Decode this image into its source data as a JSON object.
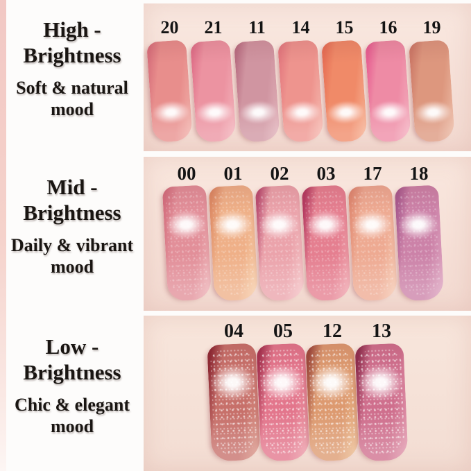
{
  "page": {
    "background": "#fdfcfb",
    "left_strip_color": "#f2c8c4",
    "text_color": "#191512",
    "number_color": "#141414"
  },
  "sections": [
    {
      "id": "high-brightness",
      "title": [
        "High -",
        "Brightness"
      ],
      "subtitle": [
        "Soft & natural",
        "mood"
      ],
      "panel": {
        "bg_top": "#f9e8e0",
        "bg_bottom": "#f3dad1"
      },
      "swatches": [
        {
          "number": "20",
          "color": "#e88e8c",
          "edge": "#d8707c",
          "light": "#f2b3ac"
        },
        {
          "number": "21",
          "color": "#ec93a1",
          "edge": "#e0718a",
          "light": "#f4b5bd"
        },
        {
          "number": "11",
          "color": "#d095a1",
          "edge": "#b96f83",
          "light": "#e3b4bc"
        },
        {
          "number": "14",
          "color": "#ee948e",
          "edge": "#e47a80",
          "light": "#f6bcb2"
        },
        {
          "number": "15",
          "color": "#f08a68",
          "edge": "#e76f55",
          "light": "#f7b496"
        },
        {
          "number": "16",
          "color": "#ee8ba5",
          "edge": "#e75f92",
          "light": "#f5b3c2"
        },
        {
          "number": "19",
          "color": "#dd977e",
          "edge": "#cd7a68",
          "light": "#ecbba5"
        }
      ]
    },
    {
      "id": "mid-brightness",
      "title": [
        "Mid -",
        "Brightness"
      ],
      "subtitle": [
        "Daily & vibrant",
        "mood"
      ],
      "panel": {
        "bg_top": "#f9e7de",
        "bg_bottom": "#f3dad1"
      },
      "swatches": [
        {
          "number": "00",
          "color": "#e28f99",
          "edge": "#d4707f",
          "light": "#efb6ba"
        },
        {
          "number": "01",
          "color": "#efb088",
          "edge": "#dd8a64",
          "light": "#f7d0ab"
        },
        {
          "number": "02",
          "color": "#eba3ab",
          "edge": "#bb4f72",
          "light": "#f5c6c8"
        },
        {
          "number": "03",
          "color": "#e57f90",
          "edge": "#b43a60",
          "light": "#f1a9b1"
        },
        {
          "number": "17",
          "color": "#eeaa92",
          "edge": "#e08a72",
          "light": "#f6ccb4"
        },
        {
          "number": "18",
          "color": "#cc82a8",
          "edge": "#a85a8e",
          "light": "#dea6c1"
        }
      ]
    },
    {
      "id": "low-brightness",
      "title": [
        "Low -",
        "Brightness"
      ],
      "subtitle": [
        "Chic & elegant",
        "mood"
      ],
      "panel": {
        "bg_top": "#f8e6dc",
        "bg_bottom": "#f3ddd3"
      },
      "swatches": [
        {
          "number": "04",
          "color": "#c7706a",
          "edge": "#8e2a34",
          "light": "#dd9a8b"
        },
        {
          "number": "05",
          "color": "#e3768c",
          "edge": "#a63350",
          "light": "#eea0ab"
        },
        {
          "number": "12",
          "color": "#dd9a70",
          "edge": "#9e4a3c",
          "light": "#eec091"
        },
        {
          "number": "13",
          "color": "#cf6f8d",
          "edge": "#8e2e4e",
          "light": "#e29aae"
        }
      ]
    }
  ]
}
